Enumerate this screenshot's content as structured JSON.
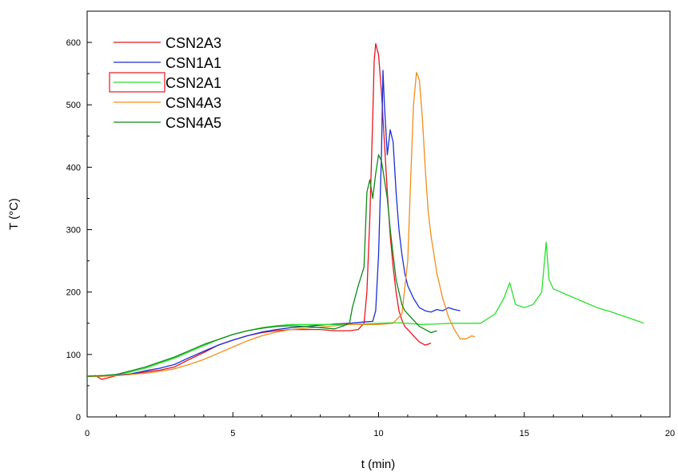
{
  "chart_data": {
    "type": "line",
    "xlabel": "t (min)",
    "ylabel": "T (°C)",
    "xlim": [
      0,
      20
    ],
    "ylim": [
      0,
      650
    ],
    "xticks": [
      "0",
      "5",
      "10",
      "15",
      "20"
    ],
    "yticks": [
      "0",
      "100",
      "200",
      "300",
      "400",
      "500",
      "600"
    ],
    "grid": false,
    "legend_position": "top-left",
    "series": [
      {
        "name": "CSN2A3",
        "color": "#e8141c",
        "x": [
          0,
          0.3,
          0.5,
          1,
          1.5,
          2,
          2.5,
          3,
          3.5,
          4,
          4.5,
          5,
          5.5,
          6,
          6.5,
          7,
          7.5,
          8,
          8.5,
          9,
          9.3,
          9.5,
          9.6,
          9.7,
          9.8,
          9.85,
          9.9,
          10.0,
          10.1,
          10.2,
          10.3,
          10.4,
          10.5,
          10.6,
          10.7,
          10.8,
          10.9,
          11.0,
          11.2,
          11.4,
          11.6,
          11.8
        ],
        "y": [
          65,
          66,
          60,
          66,
          68,
          72,
          75,
          80,
          92,
          103,
          115,
          123,
          130,
          135,
          138,
          140,
          140,
          140,
          138,
          138,
          140,
          150,
          200,
          320,
          480,
          570,
          598,
          580,
          520,
          440,
          360,
          290,
          240,
          200,
          170,
          155,
          145,
          140,
          130,
          120,
          115,
          118
        ]
      },
      {
        "name": "CSN1A1",
        "color": "#1a2fd6",
        "x": [
          0,
          0.5,
          1,
          1.5,
          2,
          2.5,
          3,
          3.5,
          4,
          4.5,
          5,
          5.5,
          6,
          6.5,
          7,
          7.5,
          8,
          8.5,
          9,
          9.5,
          9.8,
          9.9,
          10.0,
          10.1,
          10.15,
          10.2,
          10.3,
          10.4,
          10.5,
          10.6,
          10.7,
          10.8,
          10.9,
          11.0,
          11.2,
          11.4,
          11.6,
          11.8,
          12.0,
          12.2,
          12.4,
          12.6,
          12.8
        ],
        "y": [
          65,
          66,
          67,
          69,
          74,
          78,
          84,
          95,
          105,
          115,
          123,
          130,
          136,
          140,
          143,
          145,
          147,
          149,
          150,
          152,
          153,
          170,
          260,
          420,
          555,
          500,
          420,
          460,
          440,
          360,
          300,
          260,
          230,
          210,
          190,
          175,
          170,
          168,
          172,
          170,
          175,
          172,
          170
        ]
      },
      {
        "name": "CSN2A1",
        "color": "#29e02c",
        "x": [
          0,
          0.5,
          1,
          1.5,
          2,
          2.5,
          3,
          3.5,
          4,
          4.5,
          5,
          5.5,
          6,
          6.5,
          7,
          7.5,
          8,
          8.5,
          9,
          9.5,
          10,
          10.5,
          11,
          11.5,
          12,
          12.5,
          13,
          13.5,
          14,
          14.3,
          14.5,
          14.7,
          15,
          15.3,
          15.6,
          15.75,
          15.85,
          16,
          16.5,
          17,
          17.5,
          18,
          18.5,
          19,
          19.1
        ],
        "y": [
          65,
          66,
          68,
          72,
          78,
          86,
          94,
          104,
          114,
          124,
          132,
          138,
          143,
          146,
          148,
          148,
          148,
          148,
          148,
          149,
          150,
          151,
          150,
          148,
          149,
          150,
          150,
          150,
          165,
          190,
          215,
          180,
          175,
          180,
          200,
          280,
          220,
          205,
          195,
          185,
          175,
          168,
          160,
          152,
          150
        ]
      },
      {
        "name": "CSN4A3",
        "color": "#f28c1c",
        "x": [
          0,
          0.5,
          1,
          1.5,
          2,
          2.5,
          3,
          3.5,
          4,
          4.5,
          5,
          5.5,
          6,
          6.5,
          7,
          7.5,
          8,
          8.5,
          9,
          9.5,
          10,
          10.5,
          10.8,
          11.0,
          11.1,
          11.2,
          11.3,
          11.4,
          11.5,
          11.6,
          11.7,
          11.8,
          11.9,
          12.0,
          12.2,
          12.4,
          12.6,
          12.8,
          13.0,
          13.2,
          13.3
        ],
        "y": [
          65,
          65,
          66,
          68,
          70,
          73,
          77,
          84,
          92,
          102,
          112,
          122,
          130,
          136,
          140,
          142,
          144,
          146,
          148,
          148,
          148,
          150,
          165,
          250,
          380,
          500,
          552,
          540,
          480,
          400,
          330,
          290,
          260,
          230,
          190,
          160,
          140,
          125,
          125,
          130,
          128
        ]
      },
      {
        "name": "CSN4A5",
        "color": "#0f8a1a",
        "x": [
          0,
          0.5,
          1,
          1.5,
          2,
          2.5,
          3,
          3.5,
          4,
          4.5,
          5,
          5.5,
          6,
          6.5,
          7,
          7.5,
          8,
          8.5,
          8.8,
          9.0,
          9.1,
          9.3,
          9.5,
          9.6,
          9.7,
          9.8,
          9.9,
          10.0,
          10.1,
          10.2,
          10.3,
          10.4,
          10.5,
          10.6,
          10.7,
          10.8,
          10.9,
          11.0,
          11.2,
          11.4,
          11.6,
          11.8,
          12.0
        ],
        "y": [
          65,
          66,
          68,
          74,
          80,
          88,
          96,
          106,
          116,
          124,
          132,
          138,
          142,
          145,
          146,
          145,
          143,
          141,
          146,
          150,
          175,
          210,
          240,
          360,
          380,
          350,
          390,
          420,
          410,
          380,
          350,
          300,
          260,
          220,
          200,
          180,
          170,
          165,
          155,
          145,
          140,
          135,
          138
        ]
      }
    ]
  }
}
